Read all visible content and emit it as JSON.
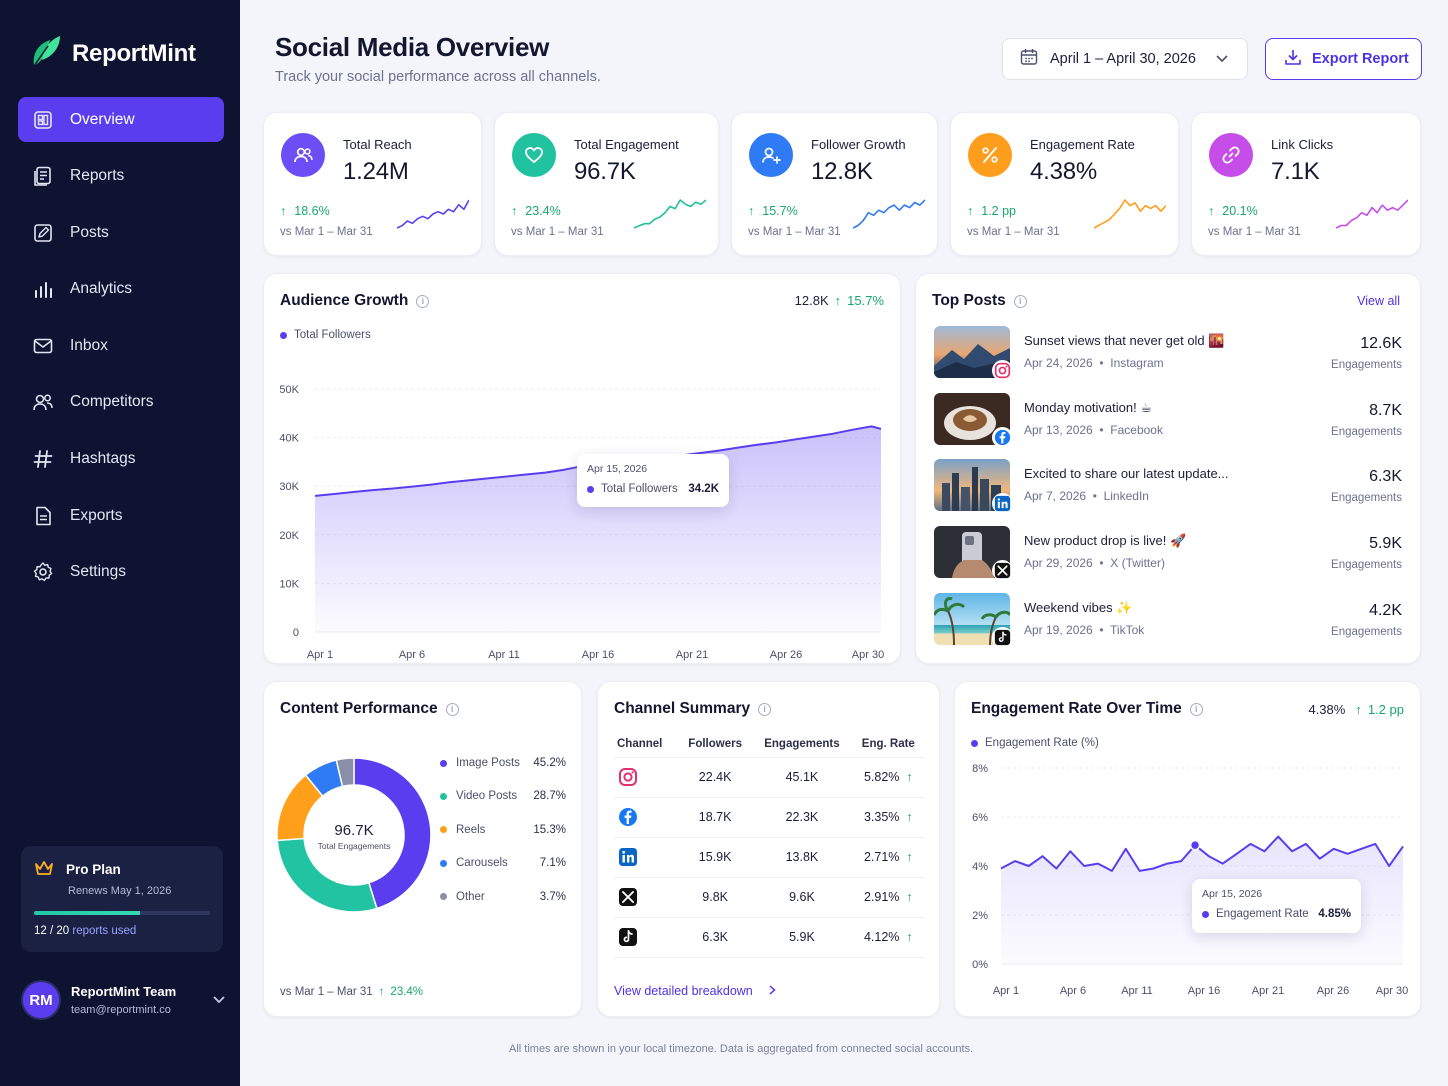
{
  "app": {
    "name": "ReportMint"
  },
  "sidebar": {
    "items": [
      {
        "label": "Overview",
        "icon": "overview-icon",
        "active": true
      },
      {
        "label": "Reports",
        "icon": "reports-icon"
      },
      {
        "label": "Posts",
        "icon": "posts-icon"
      },
      {
        "label": "Analytics",
        "icon": "analytics-icon"
      },
      {
        "label": "Inbox",
        "icon": "inbox-icon"
      },
      {
        "label": "Competitors",
        "icon": "competitors-icon"
      },
      {
        "label": "Hashtags",
        "icon": "hashtag-icon"
      },
      {
        "label": "Exports",
        "icon": "exports-icon"
      },
      {
        "label": "Settings",
        "icon": "settings-icon"
      }
    ],
    "plan": {
      "name": "Pro Plan",
      "renews": "Renews May 1, 2026",
      "used": "12",
      "total": "20",
      "suffix": "reports used",
      "used_fraction": 0.6,
      "separator": " / "
    },
    "account": {
      "initials": "RM",
      "name": "ReportMint Team",
      "email": "team@reportmint.co"
    }
  },
  "header": {
    "title": "Social Media Overview",
    "subtitle": "Track your social performance across all channels.",
    "date_range": "April 1 – April 30, 2026",
    "export_label": "Export Report"
  },
  "kpis": [
    {
      "label": "Total Reach",
      "value": "1.24M",
      "delta": "18.6%",
      "compare": "vs Mar 1 – Mar 31",
      "color": "#6b4ef6",
      "spark_color": "#5b3df0",
      "icon": "users-icon",
      "spark": [
        6,
        7,
        9,
        8,
        10,
        11,
        10,
        12,
        13,
        12,
        14,
        13,
        16,
        14,
        18
      ]
    },
    {
      "label": "Total Engagement",
      "value": "96.7K",
      "delta": "23.4%",
      "compare": "vs Mar 1 – Mar 31",
      "color": "#20c2a0",
      "spark_color": "#1fbf9a",
      "icon": "heart-icon",
      "spark": [
        4,
        5,
        6,
        6,
        8,
        9,
        11,
        14,
        13,
        17,
        15,
        14,
        16,
        15,
        17
      ]
    },
    {
      "label": "Follower Growth",
      "value": "12.8K",
      "delta": "15.7%",
      "compare": "vs Mar 1 – Mar 31",
      "color": "#2f7bf5",
      "spark_color": "#2f7bf5",
      "icon": "user-plus-icon",
      "spark": [
        5,
        6,
        8,
        11,
        10,
        12,
        11,
        13,
        14,
        12,
        14,
        13,
        15,
        14,
        16
      ]
    },
    {
      "label": "Engagement Rate",
      "value": "4.38%",
      "delta": "1.2 pp",
      "compare": "vs Mar 1 – Mar 31",
      "color": "#ff9d1c",
      "spark_color": "#ff9d1c",
      "icon": "percent-icon",
      "spark": [
        4,
        5,
        6,
        7,
        9,
        11,
        14,
        12,
        13,
        10,
        12,
        11,
        12,
        10,
        12
      ]
    },
    {
      "label": "Link Clicks",
      "value": "7.1K",
      "delta": "20.1%",
      "compare": "vs Mar 1 – Mar 31",
      "color": "#c64de8",
      "spark_color": "#c64de8",
      "icon": "link-icon",
      "spark": [
        5,
        6,
        6,
        8,
        9,
        11,
        10,
        13,
        11,
        14,
        12,
        13,
        12,
        14,
        16
      ]
    }
  ],
  "audience": {
    "title": "Audience Growth",
    "summary_value": "12.8K",
    "summary_delta": "15.7%",
    "legend": "Total Followers",
    "tooltip": {
      "date": "Apr 15, 2026",
      "label": "Total Followers",
      "value": "34.2K"
    }
  },
  "top_posts": {
    "title": "Top Posts",
    "view_all": "View all",
    "items": [
      {
        "title": "Sunset views that never get old 🌇",
        "date": "Apr 24, 2026",
        "platform": "Instagram",
        "value": "12.6K",
        "unit": "Engagements",
        "badge": "instagram-icon",
        "badge_color": "#e1306c",
        "thumb": "mountain-sunset"
      },
      {
        "title": "Monday motivation! ☕",
        "date": "Apr 13, 2026",
        "platform": "Facebook",
        "value": "8.7K",
        "unit": "Engagements",
        "badge": "facebook-icon",
        "badge_color": "#1877f2",
        "thumb": "coffee"
      },
      {
        "title": "Excited to share our latest update...",
        "date": "Apr 7, 2026",
        "platform": "LinkedIn",
        "value": "6.3K",
        "unit": "Engagements",
        "badge": "linkedin-icon",
        "badge_color": "#0a66c2",
        "thumb": "city"
      },
      {
        "title": "New product drop is live! 🚀",
        "date": "Apr 29, 2026",
        "platform": "X (Twitter)",
        "value": "5.9K",
        "unit": "Engagements",
        "badge": "x-icon",
        "badge_color": "#111111",
        "thumb": "phone"
      },
      {
        "title": "Weekend vibes ✨",
        "date": "Apr 19, 2026",
        "platform": "TikTok",
        "value": "4.2K",
        "unit": "Engagements",
        "badge": "tiktok-icon",
        "badge_color": "#111111",
        "thumb": "beach"
      }
    ]
  },
  "content_perf": {
    "title": "Content Performance",
    "center_value": "96.7K",
    "center_label": "Total Engagements",
    "compare": "vs Mar 1 – Mar 31",
    "delta": "23.4%"
  },
  "channel_summary": {
    "title": "Channel Summary",
    "headers": [
      "Channel",
      "Followers",
      "Engagements",
      "Eng. Rate"
    ],
    "rows": [
      {
        "icon": "instagram-icon",
        "color": "#e1306c",
        "followers": "22.4K",
        "engagements": "45.1K",
        "rate": "5.82%"
      },
      {
        "icon": "facebook-icon",
        "color": "#1877f2",
        "followers": "18.7K",
        "engagements": "22.3K",
        "rate": "3.35%"
      },
      {
        "icon": "linkedin-icon",
        "color": "#0a66c2",
        "followers": "15.9K",
        "engagements": "13.8K",
        "rate": "2.71%"
      },
      {
        "icon": "x-icon",
        "color": "#111111",
        "followers": "9.8K",
        "engagements": "9.6K",
        "rate": "2.91%"
      },
      {
        "icon": "tiktok-icon",
        "color": "#111111",
        "followers": "6.3K",
        "engagements": "5.9K",
        "rate": "4.12%"
      }
    ],
    "link": "View detailed breakdown"
  },
  "eng_rate": {
    "title": "Engagement Rate Over Time",
    "summary_value": "4.38%",
    "summary_delta": "1.2 pp",
    "legend": "Engagement Rate (%)",
    "tooltip": {
      "date": "Apr 15, 2026",
      "label": "Engagement Rate",
      "value": "4.85%"
    }
  },
  "footer_note": "All times are shown in your local timezone. Data is aggregated from connected social accounts.",
  "chart_data": [
    {
      "type": "area",
      "title": "Audience Growth",
      "series": [
        {
          "name": "Total Followers",
          "color": "#5b3df0",
          "values": [
            28.0,
            28.4,
            28.8,
            29.2,
            29.5,
            29.9,
            30.3,
            30.8,
            31.2,
            31.6,
            32.0,
            32.4,
            32.8,
            33.4,
            34.2,
            34.6,
            35.0,
            35.4,
            35.9,
            36.3,
            36.8,
            37.3,
            37.9,
            38.5,
            39.0,
            39.6,
            40.2,
            40.8,
            41.6,
            42.3,
            41.8
          ]
        }
      ],
      "x": [
        1,
        2,
        3,
        4,
        5,
        6,
        7,
        8,
        9,
        10,
        11,
        12,
        13,
        14,
        15,
        16,
        17,
        18,
        19,
        20,
        21,
        22,
        23,
        24,
        25,
        26,
        27,
        28,
        29,
        30,
        30.5
      ],
      "x_ticks": [
        "Apr 1",
        "Apr 6",
        "Apr 11",
        "Apr 16",
        "Apr 21",
        "Apr 26",
        "Apr 30"
      ],
      "y_ticks": [
        "0",
        "10K",
        "20K",
        "30K",
        "40K",
        "50K"
      ],
      "ylim": [
        0,
        50
      ],
      "grid": true
    },
    {
      "type": "pie",
      "title": "Content Performance",
      "categories": [
        "Image Posts",
        "Video Posts",
        "Reels",
        "Carousels",
        "Other"
      ],
      "values": [
        45.2,
        28.7,
        15.3,
        7.1,
        3.7
      ],
      "labels": [
        "45.2%",
        "28.7%",
        "15.3%",
        "7.1%",
        "3.7%"
      ],
      "colors": [
        "#5b3df0",
        "#22c3a1",
        "#ff9f1a",
        "#2f7bf5",
        "#8a8fa8"
      ]
    },
    {
      "type": "line",
      "title": "Engagement Rate Over Time",
      "series": [
        {
          "name": "Engagement Rate (%)",
          "color": "#5b3df0",
          "values": [
            3.9,
            4.2,
            4.0,
            4.4,
            3.9,
            4.6,
            4.0,
            4.1,
            3.8,
            4.7,
            3.8,
            3.9,
            4.1,
            4.2,
            4.85,
            4.4,
            4.1,
            4.5,
            4.9,
            4.6,
            5.2,
            4.6,
            4.9,
            4.3,
            4.7,
            4.5,
            4.7,
            4.9,
            4.0,
            4.8
          ]
        }
      ],
      "x": [
        1,
        2,
        3,
        4,
        5,
        6,
        7,
        8,
        9,
        10,
        11,
        12,
        13,
        14,
        15,
        16,
        17,
        18,
        19,
        20,
        21,
        22,
        23,
        24,
        25,
        26,
        27,
        28,
        29,
        30
      ],
      "x_ticks": [
        "Apr 1",
        "Apr 6",
        "Apr 11",
        "Apr 16",
        "Apr 21",
        "Apr 26",
        "Apr 30"
      ],
      "y_ticks": [
        "0%",
        "2%",
        "4%",
        "6%",
        "8%"
      ],
      "ylim": [
        0,
        8
      ],
      "grid": true
    }
  ]
}
